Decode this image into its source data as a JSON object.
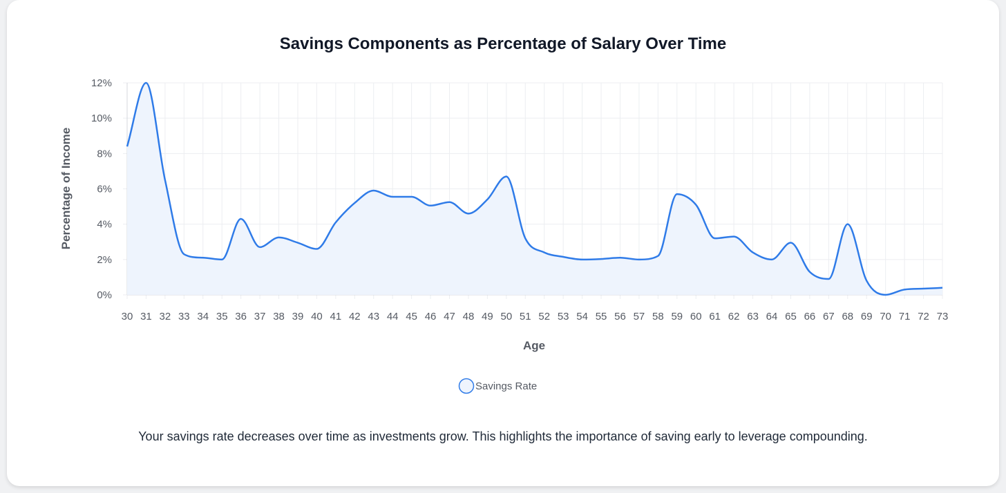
{
  "chart_data": {
    "type": "area",
    "title": "Savings Components as Percentage of Salary Over Time",
    "xlabel": "Age",
    "ylabel": "Percentage of Income",
    "x": [
      30,
      31,
      32,
      33,
      34,
      35,
      36,
      37,
      38,
      39,
      40,
      41,
      42,
      43,
      44,
      45,
      46,
      47,
      48,
      49,
      50,
      51,
      52,
      53,
      54,
      55,
      56,
      57,
      58,
      59,
      60,
      61,
      62,
      63,
      64,
      65,
      66,
      67,
      68,
      69,
      70,
      71,
      72,
      73
    ],
    "ylim": [
      0,
      12
    ],
    "yticks": [
      0,
      2,
      4,
      6,
      8,
      10,
      12
    ],
    "ytick_suffix": "%",
    "grid": true,
    "legend_position": "bottom",
    "series": [
      {
        "name": "Savings Rate",
        "color": "#2f7be8",
        "fill": "#eef4fd",
        "values": [
          8.4,
          12.0,
          6.5,
          2.3,
          2.1,
          2.0,
          4.3,
          2.7,
          3.25,
          2.95,
          2.6,
          4.1,
          5.2,
          5.9,
          5.55,
          5.55,
          5.05,
          5.25,
          4.6,
          5.4,
          6.7,
          3.2,
          2.4,
          2.15,
          2.0,
          2.03,
          2.1,
          2.0,
          2.2,
          5.7,
          5.1,
          3.2,
          3.3,
          2.4,
          2.0,
          2.95,
          1.3,
          0.9,
          4.0,
          0.8,
          0.0,
          0.3,
          0.35,
          0.4
        ]
      }
    ]
  },
  "caption": "Your savings rate decreases over time as investments grow. This highlights the importance of saving early to leverage compounding."
}
